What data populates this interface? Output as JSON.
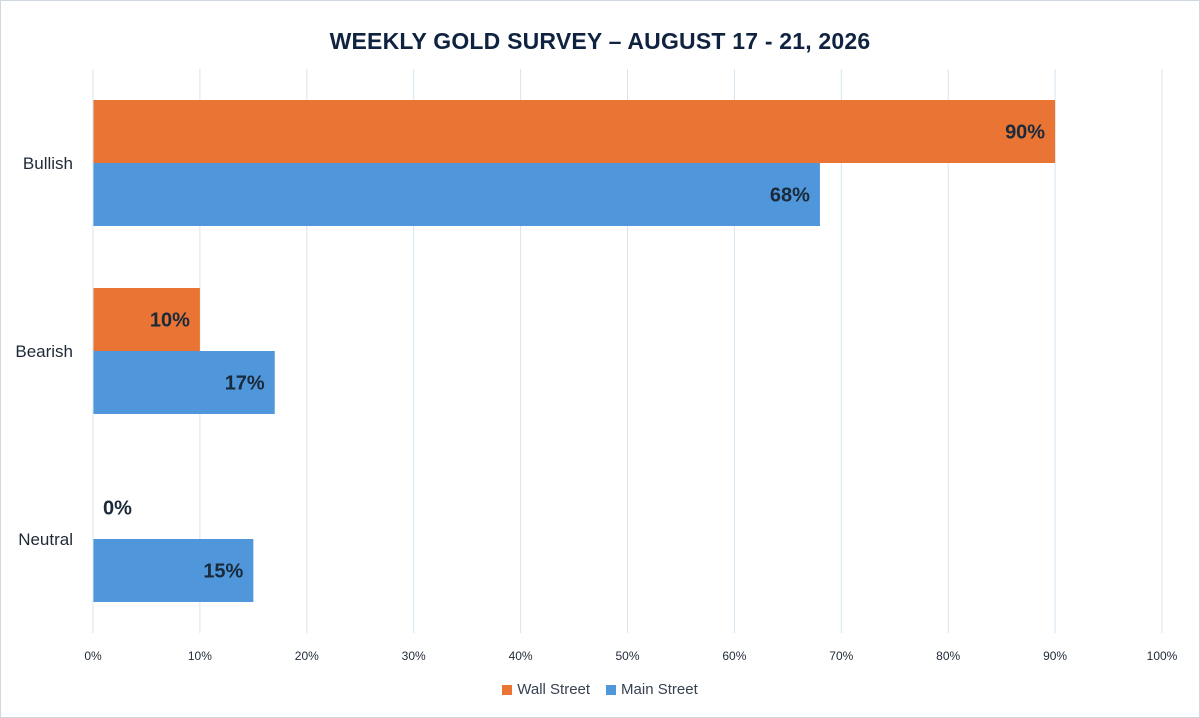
{
  "chart_data": {
    "type": "bar",
    "orientation": "horizontal",
    "title": "WEEKLY GOLD SURVEY – AUGUST 17 - 21, 2026",
    "categories": [
      "Bullish",
      "Bearish",
      "Neutral"
    ],
    "series": [
      {
        "name": "Wall Street",
        "color": "#ea7434",
        "values": [
          90,
          10,
          0
        ]
      },
      {
        "name": "Main Street",
        "color": "#4f96db",
        "values": [
          68,
          17,
          15
        ]
      }
    ],
    "xlim": [
      0,
      100
    ],
    "x_ticks": [
      0,
      10,
      20,
      30,
      40,
      50,
      60,
      70,
      80,
      90,
      100
    ],
    "tick_suffix": "%",
    "grid": true,
    "legend_position": "bottom",
    "xlabel": "",
    "ylabel": ""
  }
}
